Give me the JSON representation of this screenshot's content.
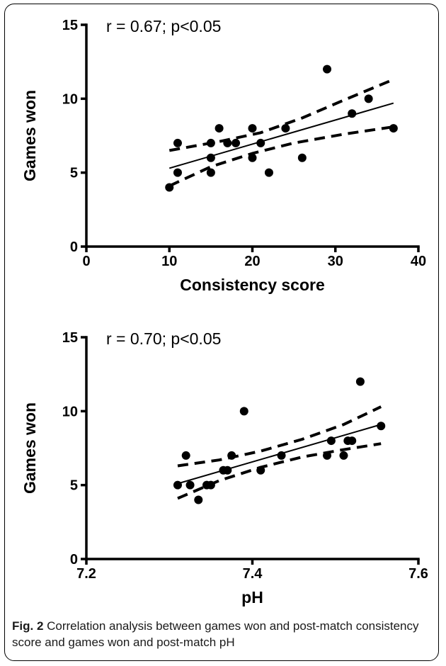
{
  "chart_data": [
    {
      "type": "scatter",
      "annotation": "r = 0.67; p<0.05",
      "xlabel": "Consistency score",
      "ylabel": "Games won",
      "xlim": [
        0,
        40
      ],
      "ylim": [
        0,
        15
      ],
      "xticks": [
        0,
        10,
        20,
        30,
        40
      ],
      "yticks": [
        0,
        5,
        10,
        15
      ],
      "points": [
        [
          10,
          4
        ],
        [
          11,
          5
        ],
        [
          11,
          7
        ],
        [
          15,
          5
        ],
        [
          15,
          6
        ],
        [
          15,
          7
        ],
        [
          16,
          8
        ],
        [
          17,
          7
        ],
        [
          18,
          7
        ],
        [
          20,
          6
        ],
        [
          20,
          8
        ],
        [
          21,
          7
        ],
        [
          22,
          5
        ],
        [
          24,
          8
        ],
        [
          26,
          6
        ],
        [
          29,
          12
        ],
        [
          32,
          9
        ],
        [
          34,
          10
        ],
        [
          37,
          8
        ]
      ],
      "fit": {
        "x0": 10,
        "x1": 37,
        "y0": 5.3,
        "y1": 9.7
      },
      "ci_upper": [
        [
          10,
          6.5
        ],
        [
          16,
          7.1
        ],
        [
          21,
          7.7
        ],
        [
          26,
          8.7
        ],
        [
          31,
          9.9
        ],
        [
          37,
          11.3
        ]
      ],
      "ci_lower": [
        [
          10,
          4.1
        ],
        [
          15,
          5.4
        ],
        [
          20,
          6.3
        ],
        [
          25,
          7.0
        ],
        [
          31,
          7.6
        ],
        [
          37,
          8.1
        ]
      ],
      "grid": false,
      "legend": "none"
    },
    {
      "type": "scatter",
      "annotation": "r = 0.70; p<0.05",
      "xlabel": "pH",
      "ylabel": "Games won",
      "xlim": [
        7.2,
        7.6
      ],
      "ylim": [
        0,
        15
      ],
      "xticks": [
        7.2,
        7.4,
        7.6
      ],
      "yticks": [
        0,
        5,
        10,
        15
      ],
      "points": [
        [
          7.31,
          5
        ],
        [
          7.32,
          7
        ],
        [
          7.325,
          5
        ],
        [
          7.335,
          4
        ],
        [
          7.345,
          5
        ],
        [
          7.35,
          5
        ],
        [
          7.365,
          6
        ],
        [
          7.37,
          6
        ],
        [
          7.375,
          7
        ],
        [
          7.39,
          10
        ],
        [
          7.41,
          6
        ],
        [
          7.435,
          7
        ],
        [
          7.49,
          7
        ],
        [
          7.495,
          8
        ],
        [
          7.51,
          7
        ],
        [
          7.515,
          8
        ],
        [
          7.52,
          8
        ],
        [
          7.53,
          12
        ],
        [
          7.555,
          9
        ]
      ],
      "fit": {
        "x0": 7.31,
        "x1": 7.555,
        "y0": 5.1,
        "y1": 9.1
      },
      "ci_upper": [
        [
          7.31,
          6.3
        ],
        [
          7.36,
          6.7
        ],
        [
          7.41,
          7.3
        ],
        [
          7.46,
          8.1
        ],
        [
          7.51,
          9.1
        ],
        [
          7.555,
          10.3
        ]
      ],
      "ci_lower": [
        [
          7.31,
          4.1
        ],
        [
          7.36,
          5.3
        ],
        [
          7.41,
          6.2
        ],
        [
          7.46,
          6.9
        ],
        [
          7.51,
          7.4
        ],
        [
          7.555,
          7.8
        ]
      ],
      "grid": false,
      "legend": "none"
    }
  ],
  "caption": {
    "label": "Fig. 2",
    "text": " Correlation analysis between games won and post-match consistency score and games won and post-match pH"
  }
}
